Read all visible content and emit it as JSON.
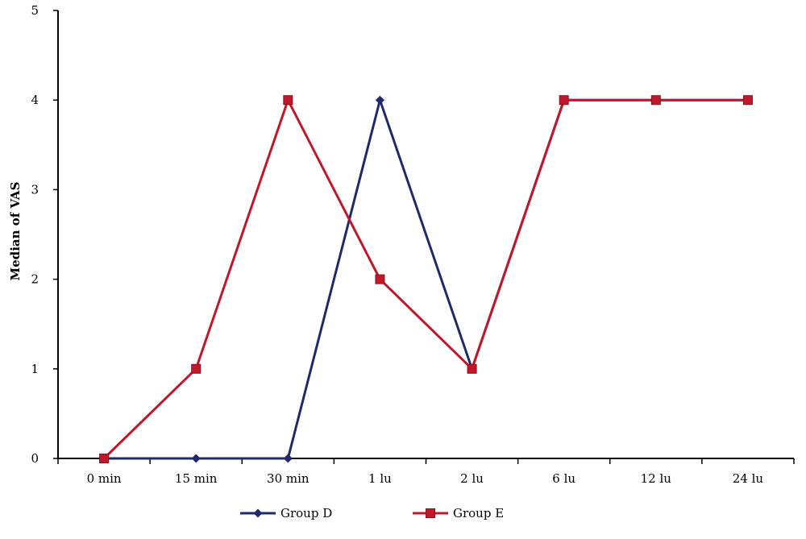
{
  "chart_data": {
    "type": "line",
    "title": "",
    "xlabel": "",
    "ylabel": "Median of VAS",
    "categories": [
      "0 min",
      "15 min",
      "30 min",
      "1 lu",
      "2 lu",
      "6 lu",
      "12 lu",
      "24 lu"
    ],
    "ylim": [
      0,
      5
    ],
    "yticks": [
      0,
      1,
      2,
      3,
      4,
      5
    ],
    "grid": false,
    "legend_position": "bottom",
    "series": [
      {
        "name": "Group D",
        "color": "#1f2a6b",
        "marker": "diamond",
        "values": [
          0,
          0,
          0,
          4,
          1,
          4,
          4,
          4
        ]
      },
      {
        "name": "Group E",
        "color": "#c0182a",
        "marker": "square",
        "values": [
          0,
          1,
          4,
          2,
          1,
          4,
          4,
          4
        ]
      }
    ]
  }
}
